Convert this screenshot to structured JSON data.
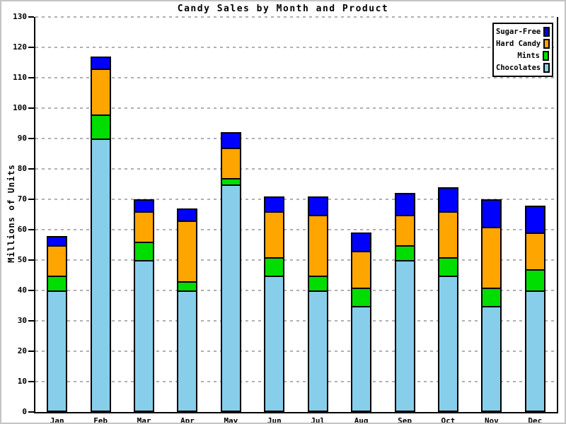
{
  "title": "Candy Sales by Month and Product",
  "y_axis": {
    "label": "Millions of Units"
  },
  "legend": {
    "entries": [
      {
        "label": "Sugar-Free",
        "color": "#0000FF"
      },
      {
        "label": "Hard Candy",
        "color": "#FFA500"
      },
      {
        "label": "Mints",
        "color": "#00DD00"
      },
      {
        "label": "Chocolates",
        "color": "#87CEEB"
      }
    ]
  },
  "chart_data": {
    "type": "bar",
    "stacked": true,
    "title": "Candy Sales by Month and Product",
    "xlabel": "",
    "ylabel": "Millions of Units",
    "categories": [
      "Jan",
      "Feb",
      "Mar",
      "Apr",
      "May",
      "Jun",
      "Jul",
      "Aug",
      "Sep",
      "Oct",
      "Nov",
      "Dec"
    ],
    "series": [
      {
        "name": "Chocolates",
        "color": "#87CEEB",
        "values": [
          40,
          90,
          50,
          40,
          75,
          45,
          40,
          35,
          50,
          45,
          35,
          40
        ]
      },
      {
        "name": "Mints",
        "color": "#00DD00",
        "values": [
          5,
          8,
          6,
          3,
          2,
          6,
          5,
          6,
          5,
          6,
          6,
          7
        ]
      },
      {
        "name": "Hard Candy",
        "color": "#FFA500",
        "values": [
          10,
          15,
          10,
          20,
          10,
          15,
          20,
          12,
          10,
          15,
          20,
          12
        ]
      },
      {
        "name": "Sugar-Free",
        "color": "#0000FF",
        "values": [
          3,
          4,
          4,
          4,
          5,
          5,
          6,
          6,
          7,
          8,
          9,
          9
        ]
      }
    ],
    "totals": [
      58,
      117,
      70,
      67,
      92,
      71,
      71,
      59,
      72,
      74,
      70,
      68
    ],
    "ylim": [
      0,
      130
    ],
    "ytick_step": 10,
    "ytick_labels": [
      "0",
      "10",
      "20",
      "30",
      "40",
      "50",
      "60",
      "70",
      "80",
      "90",
      "100",
      "110",
      "120",
      "130"
    ],
    "grid": "horizontal-dashed",
    "gridline_color": "#b0b0b0",
    "legend_position": "top-right",
    "legend_order": [
      "Sugar-Free",
      "Hard Candy",
      "Mints",
      "Chocolates"
    ]
  }
}
